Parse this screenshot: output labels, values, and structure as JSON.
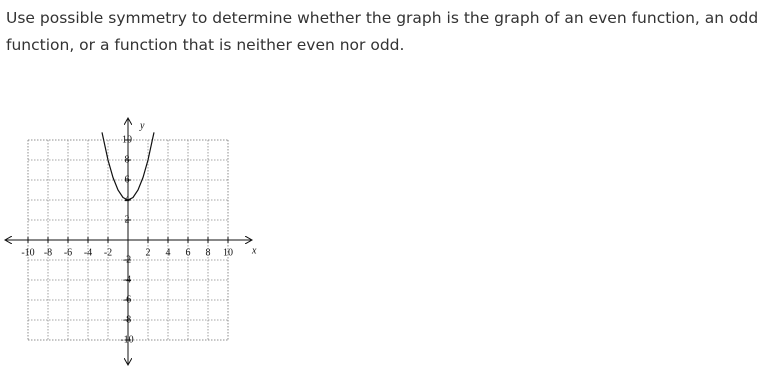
{
  "question": "Use possible symmetry to determine whether the graph is the graph of an even function, an odd function, or a function that is neither even nor odd.",
  "chart_data": {
    "type": "line",
    "x_label": "x",
    "y_label": "y",
    "xlim": [
      -10,
      10
    ],
    "ylim": [
      -10,
      10
    ],
    "xticks": [
      -10,
      -8,
      -6,
      -4,
      -2,
      2,
      4,
      6,
      8,
      10
    ],
    "yticks": [
      -10,
      -8,
      -6,
      -4,
      -2,
      2,
      4,
      6,
      8,
      10
    ],
    "grid": true,
    "x": [
      -2.6,
      -2,
      -1.5,
      -1,
      -0.5,
      0,
      0.5,
      1,
      1.5,
      2,
      2.6
    ],
    "series": [
      {
        "color": "#111111",
        "values": [
          10.76,
          8,
          6.25,
          5,
          4.25,
          4,
          4.25,
          5,
          6.25,
          8,
          10.76
        ]
      }
    ]
  }
}
